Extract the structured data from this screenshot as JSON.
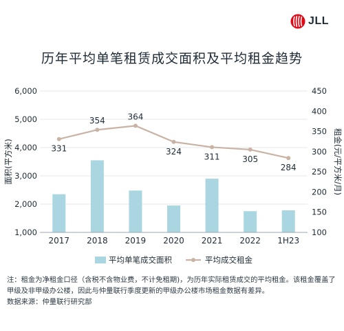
{
  "brand": {
    "name": "JLL",
    "accent_color": "#e30613"
  },
  "title": "历年平均单笔租赁成交面积及平均租金趋势",
  "chart_data": {
    "type": "bar",
    "categories": [
      "2017",
      "2018",
      "2019",
      "2020",
      "2021",
      "2022",
      "1H23"
    ],
    "ylabel_left": "面积(平方米)",
    "ylabel_right": "租金(元/平方米/月)",
    "ylim_left": [
      1000,
      6000
    ],
    "yticks_left": [
      "1,000",
      "2,000",
      "3,000",
      "4,000",
      "5,000",
      "6,000"
    ],
    "ylim_right": [
      100,
      450
    ],
    "yticks_right": [
      "100",
      "150",
      "200",
      "250",
      "300",
      "350",
      "400",
      "450"
    ],
    "grid": true,
    "legend_position": "bottom",
    "series": [
      {
        "name": "平均单笔成交面积",
        "type": "bar",
        "axis": "left",
        "color": "#a9d6e0",
        "values": [
          2350,
          3550,
          2480,
          1950,
          2900,
          1750,
          1780
        ]
      },
      {
        "name": "平均成交租金",
        "type": "line",
        "axis": "right",
        "color": "#c9b3a5",
        "values": [
          331,
          354,
          364,
          324,
          311,
          305,
          284
        ],
        "labels": [
          "331",
          "354",
          "364",
          "324",
          "311",
          "305",
          "284"
        ]
      }
    ]
  },
  "notes": [
    "注：租金为净租金口径（含税不含物业费，不计免租期)，为历年实际租赁成交的平均租金。该租金覆盖了甲级及非甲级办公楼，因此与仲量联行季度更新的甲级办公楼市场租金数据有差异。",
    "数据来源：仲量联行研究部"
  ]
}
